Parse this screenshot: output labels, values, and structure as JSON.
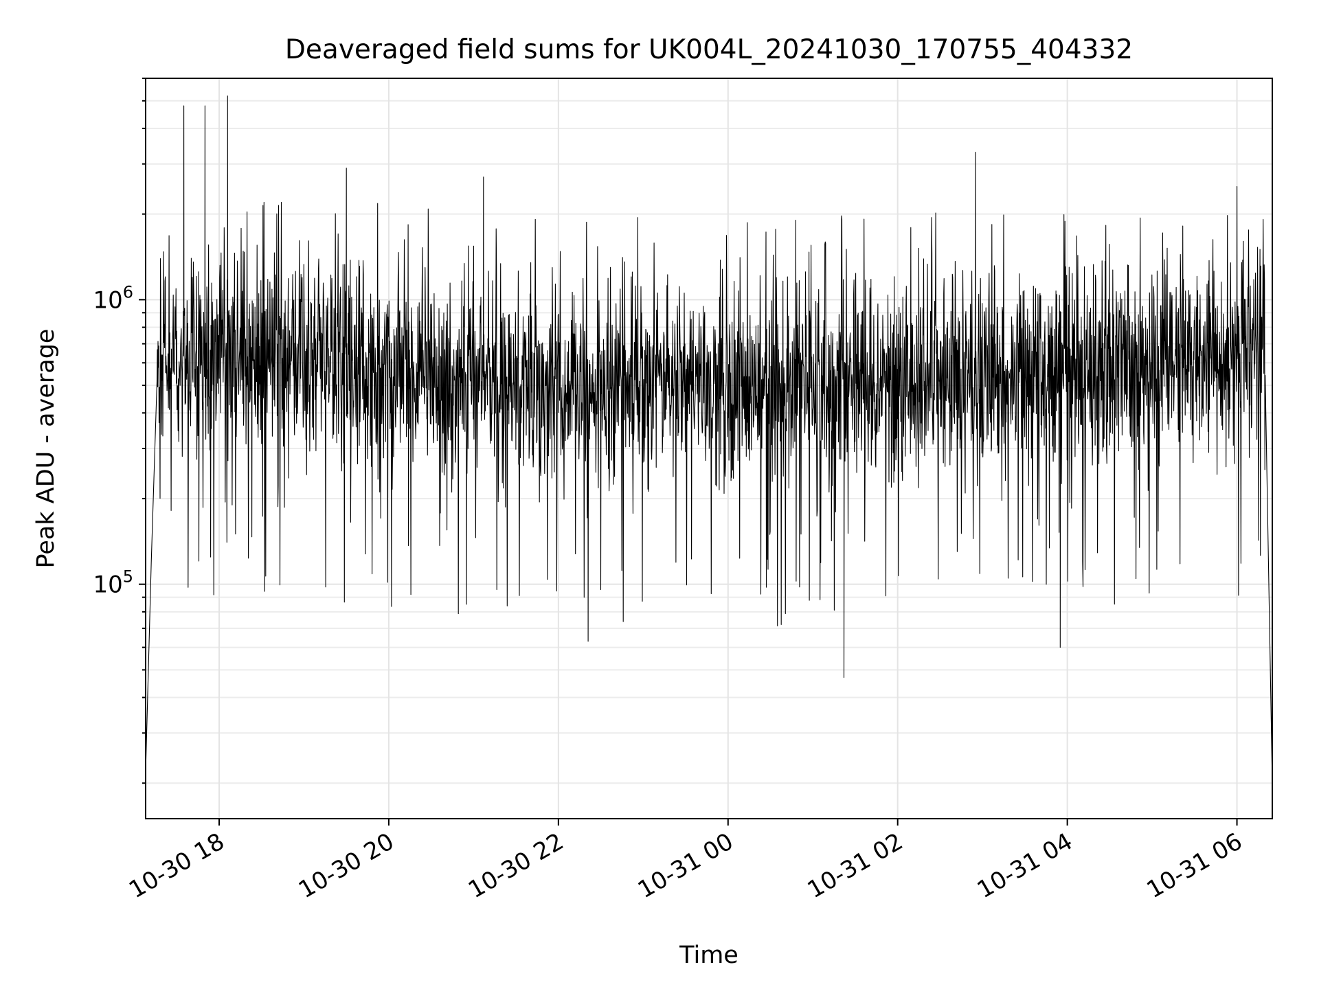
{
  "chart_data": {
    "type": "line",
    "title": "Deaveraged field sums for UK004L_20241030_170755_404332",
    "xlabel": "Time",
    "ylabel": "Peak ADU - average",
    "y_scale": "log",
    "ylim": [
      15000,
      6000000
    ],
    "xlim": [
      "2024-10-30 17:08",
      "2024-10-31 06:25"
    ],
    "x_ticks": [
      "10-30 18",
      "10-30 20",
      "10-30 22",
      "10-31 00",
      "10-31 02",
      "10-31 04",
      "10-31 06"
    ],
    "x_tick_values": [
      "2024-10-30 18:00",
      "2024-10-30 20:00",
      "2024-10-30 22:00",
      "2024-10-31 00:00",
      "2024-10-31 02:00",
      "2024-10-31 04:00",
      "2024-10-31 06:00"
    ],
    "y_ticks": [
      {
        "value": 100000,
        "base": "10",
        "exp": "5"
      },
      {
        "value": 1000000,
        "base": "10",
        "exp": "6"
      }
    ],
    "grid": true,
    "line_color": "#000000",
    "series": [
      {
        "values_summary": "dense noisy trace, typically between 2e5 and 1.5e6 with median near 6e5",
        "points": [
          [
            "2024-10-30 17:08",
            22000
          ],
          [
            "2024-10-30 17:12",
            120000
          ],
          [
            "2024-10-30 17:15",
            600000
          ],
          [
            "2024-10-30 17:35",
            4800000
          ],
          [
            "2024-10-30 17:50",
            4800000
          ],
          [
            "2024-10-30 18:06",
            5200000
          ],
          [
            "2024-10-30 19:30",
            2900000
          ],
          [
            "2024-10-30 20:55",
            85000
          ],
          [
            "2024-10-30 21:07",
            2700000
          ],
          [
            "2024-10-30 22:21",
            63000
          ],
          [
            "2024-10-31 01:22",
            47000
          ],
          [
            "2024-10-31 02:55",
            3300000
          ],
          [
            "2024-10-31 03:55",
            60000
          ],
          [
            "2024-10-31 06:00",
            2500000
          ],
          [
            "2024-10-31 06:25",
            20000
          ]
        ]
      }
    ]
  }
}
